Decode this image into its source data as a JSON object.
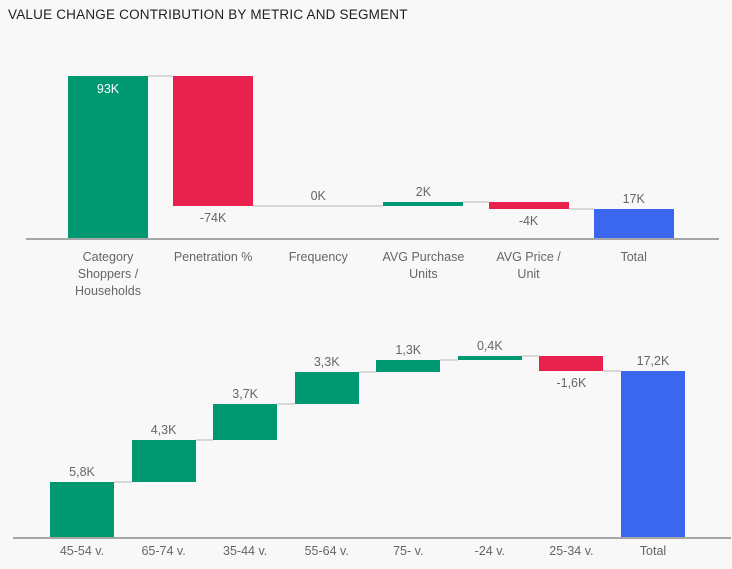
{
  "page": {
    "title": "VALUE CHANGE CONTRIBUTION BY METRIC AND SEGMENT",
    "background": "#f8f8f8"
  },
  "colors": {
    "increase": "#009871",
    "decrease": "#e9214e",
    "total": "#3a67ee",
    "connector": "#d8d8d8",
    "axis_line": "#a6a6a6",
    "label": "#666666",
    "label_on_bar": "#ffffff",
    "title": "#212121"
  },
  "chart_data": [
    {
      "type": "bar",
      "subtype": "waterfall",
      "name": "value-change-by-metric",
      "categories": [
        "Category Shoppers / Households",
        "Penetration %",
        "Frequency",
        "AVG Purchase Units",
        "AVG Price / Unit",
        "Total"
      ],
      "category_lines": [
        [
          "Category",
          "Shoppers /",
          "Households"
        ],
        [
          "Penetration %"
        ],
        [
          "Frequency"
        ],
        [
          "AVG Purchase",
          "Units"
        ],
        [
          "AVG Price /",
          "Unit"
        ],
        [
          "Total"
        ]
      ],
      "values": [
        93,
        -74,
        0,
        2,
        -4,
        17
      ],
      "labels": [
        "93K",
        "-74K",
        "0K",
        "2K",
        "-4K",
        "17K"
      ],
      "label_position": [
        "inside",
        "below",
        "above",
        "above",
        "below",
        "above"
      ],
      "total_index": 5,
      "unit": "K",
      "ylim": [
        0,
        93
      ],
      "grid": false,
      "legend": "none"
    },
    {
      "type": "bar",
      "subtype": "waterfall",
      "name": "value-change-by-segment",
      "categories": [
        "45-54 v.",
        "65-74 v.",
        "35-44 v.",
        "55-64 v.",
        "75- v.",
        "-24 v.",
        "25-34 v.",
        "Total"
      ],
      "category_lines": [
        [
          "45-54 v."
        ],
        [
          "65-74 v."
        ],
        [
          "35-44 v."
        ],
        [
          "55-64 v."
        ],
        [
          "75- v."
        ],
        [
          "-24 v."
        ],
        [
          "25-34 v."
        ],
        [
          "Total"
        ]
      ],
      "values": [
        5.8,
        4.3,
        3.7,
        3.3,
        1.3,
        0.4,
        -1.6,
        17.2
      ],
      "labels": [
        "5,8K",
        "4,3K",
        "3,7K",
        "3,3K",
        "1,3K",
        "0,4K",
        "-1,6K",
        "17,2K"
      ],
      "label_position": [
        "above",
        "above",
        "above",
        "above",
        "above",
        "above",
        "below",
        "above"
      ],
      "total_index": 7,
      "unit": "K",
      "ylim": [
        0,
        18.8
      ],
      "grid": false,
      "legend": "none"
    }
  ]
}
